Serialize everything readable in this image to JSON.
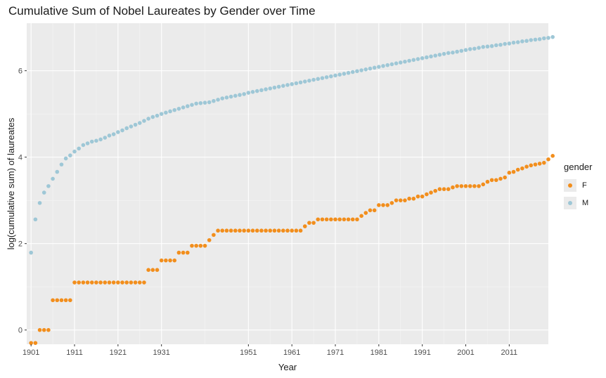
{
  "chart_data": {
    "type": "scatter",
    "title": "Cumulative Sum of Nobel Laureates by Gender over Time",
    "xlabel": "Year",
    "ylabel": "log(cumulative sum) of laureates",
    "xlim": [
      1900,
      2020
    ],
    "ylim": [
      -0.33,
      7.1
    ],
    "x_ticks": [
      1901,
      1911,
      1921,
      1931,
      1951,
      1961,
      1971,
      1981,
      1991,
      2001,
      2011
    ],
    "y_ticks": [
      0,
      2,
      4,
      6
    ],
    "grid": true,
    "legend_position": "right",
    "legend_title": "gender",
    "colors": {
      "F": "#f28e1c",
      "M": "#9ec7d6",
      "panel": "#ebebeb",
      "grid": "#ffffff"
    },
    "series": [
      {
        "name": "F",
        "color": "#f28e1c",
        "points": [
          [
            1901,
            -0.3
          ],
          [
            1902,
            -0.3
          ],
          [
            1903,
            0
          ],
          [
            1904,
            0
          ],
          [
            1905,
            0
          ],
          [
            1906,
            0.69
          ],
          [
            1907,
            0.69
          ],
          [
            1908,
            0.69
          ],
          [
            1909,
            0.69
          ],
          [
            1910,
            0.69
          ],
          [
            1911,
            1.1
          ],
          [
            1912,
            1.1
          ],
          [
            1913,
            1.1
          ],
          [
            1914,
            1.1
          ],
          [
            1915,
            1.1
          ],
          [
            1916,
            1.1
          ],
          [
            1917,
            1.1
          ],
          [
            1918,
            1.1
          ],
          [
            1919,
            1.1
          ],
          [
            1920,
            1.1
          ],
          [
            1921,
            1.1
          ],
          [
            1922,
            1.1
          ],
          [
            1923,
            1.1
          ],
          [
            1924,
            1.1
          ],
          [
            1925,
            1.1
          ],
          [
            1926,
            1.1
          ],
          [
            1927,
            1.1
          ],
          [
            1928,
            1.39
          ],
          [
            1929,
            1.39
          ],
          [
            1930,
            1.39
          ],
          [
            1931,
            1.61
          ],
          [
            1932,
            1.61
          ],
          [
            1933,
            1.61
          ],
          [
            1934,
            1.61
          ],
          [
            1935,
            1.79
          ],
          [
            1936,
            1.79
          ],
          [
            1937,
            1.79
          ],
          [
            1938,
            1.95
          ],
          [
            1939,
            1.95
          ],
          [
            1940,
            1.95
          ],
          [
            1941,
            1.95
          ],
          [
            1942,
            2.08
          ],
          [
            1943,
            2.2
          ],
          [
            1944,
            2.3
          ],
          [
            1945,
            2.3
          ],
          [
            1946,
            2.3
          ],
          [
            1947,
            2.3
          ],
          [
            1948,
            2.3
          ],
          [
            1949,
            2.3
          ],
          [
            1950,
            2.3
          ],
          [
            1951,
            2.3
          ],
          [
            1952,
            2.3
          ],
          [
            1953,
            2.3
          ],
          [
            1954,
            2.3
          ],
          [
            1955,
            2.3
          ],
          [
            1956,
            2.3
          ],
          [
            1957,
            2.3
          ],
          [
            1958,
            2.3
          ],
          [
            1959,
            2.3
          ],
          [
            1960,
            2.3
          ],
          [
            1961,
            2.3
          ],
          [
            1962,
            2.3
          ],
          [
            1963,
            2.3
          ],
          [
            1964,
            2.4
          ],
          [
            1965,
            2.48
          ],
          [
            1966,
            2.48
          ],
          [
            1967,
            2.56
          ],
          [
            1968,
            2.56
          ],
          [
            1969,
            2.56
          ],
          [
            1970,
            2.56
          ],
          [
            1971,
            2.56
          ],
          [
            1972,
            2.56
          ],
          [
            1973,
            2.56
          ],
          [
            1974,
            2.56
          ],
          [
            1975,
            2.56
          ],
          [
            1976,
            2.56
          ],
          [
            1977,
            2.64
          ],
          [
            1978,
            2.71
          ],
          [
            1979,
            2.77
          ],
          [
            1980,
            2.77
          ],
          [
            1981,
            2.89
          ],
          [
            1982,
            2.89
          ],
          [
            1983,
            2.89
          ],
          [
            1984,
            2.94
          ],
          [
            1985,
            3.0
          ],
          [
            1986,
            3.0
          ],
          [
            1987,
            3.0
          ],
          [
            1988,
            3.04
          ],
          [
            1989,
            3.04
          ],
          [
            1990,
            3.09
          ],
          [
            1991,
            3.09
          ],
          [
            1992,
            3.14
          ],
          [
            1993,
            3.18
          ],
          [
            1994,
            3.22
          ],
          [
            1995,
            3.26
          ],
          [
            1996,
            3.26
          ],
          [
            1997,
            3.26
          ],
          [
            1998,
            3.3
          ],
          [
            1999,
            3.33
          ],
          [
            2000,
            3.33
          ],
          [
            2001,
            3.33
          ],
          [
            2002,
            3.33
          ],
          [
            2003,
            3.33
          ],
          [
            2004,
            3.33
          ],
          [
            2005,
            3.37
          ],
          [
            2006,
            3.43
          ],
          [
            2007,
            3.47
          ],
          [
            2008,
            3.47
          ],
          [
            2009,
            3.5
          ],
          [
            2010,
            3.53
          ],
          [
            2011,
            3.64
          ],
          [
            2012,
            3.66
          ],
          [
            2013,
            3.71
          ],
          [
            2014,
            3.74
          ],
          [
            2015,
            3.78
          ],
          [
            2016,
            3.81
          ],
          [
            2017,
            3.83
          ],
          [
            2018,
            3.85
          ],
          [
            2019,
            3.87
          ],
          [
            2020,
            3.95
          ],
          [
            2021,
            4.03
          ]
        ]
      },
      {
        "name": "M",
        "color": "#9ec7d6",
        "points": [
          [
            1901,
            1.79
          ],
          [
            1902,
            2.56
          ],
          [
            1903,
            2.94
          ],
          [
            1904,
            3.18
          ],
          [
            1905,
            3.33
          ],
          [
            1906,
            3.5
          ],
          [
            1907,
            3.66
          ],
          [
            1908,
            3.83
          ],
          [
            1909,
            3.97
          ],
          [
            1910,
            4.04
          ],
          [
            1911,
            4.13
          ],
          [
            1912,
            4.2
          ],
          [
            1913,
            4.28
          ],
          [
            1914,
            4.32
          ],
          [
            1915,
            4.36
          ],
          [
            1916,
            4.38
          ],
          [
            1917,
            4.41
          ],
          [
            1918,
            4.45
          ],
          [
            1919,
            4.5
          ],
          [
            1920,
            4.53
          ],
          [
            1921,
            4.58
          ],
          [
            1922,
            4.62
          ],
          [
            1923,
            4.67
          ],
          [
            1924,
            4.71
          ],
          [
            1925,
            4.75
          ],
          [
            1926,
            4.79
          ],
          [
            1927,
            4.84
          ],
          [
            1928,
            4.89
          ],
          [
            1929,
            4.93
          ],
          [
            1930,
            4.96
          ],
          [
            1931,
            5.0
          ],
          [
            1932,
            5.03
          ],
          [
            1933,
            5.06
          ],
          [
            1934,
            5.09
          ],
          [
            1935,
            5.12
          ],
          [
            1936,
            5.15
          ],
          [
            1937,
            5.18
          ],
          [
            1938,
            5.21
          ],
          [
            1939,
            5.24
          ],
          [
            1940,
            5.25
          ],
          [
            1941,
            5.26
          ],
          [
            1942,
            5.27
          ],
          [
            1943,
            5.3
          ],
          [
            1944,
            5.33
          ],
          [
            1945,
            5.36
          ],
          [
            1946,
            5.38
          ],
          [
            1947,
            5.4
          ],
          [
            1948,
            5.42
          ],
          [
            1949,
            5.44
          ],
          [
            1950,
            5.46
          ],
          [
            1951,
            5.49
          ],
          [
            1952,
            5.51
          ],
          [
            1953,
            5.53
          ],
          [
            1954,
            5.55
          ],
          [
            1955,
            5.57
          ],
          [
            1956,
            5.59
          ],
          [
            1957,
            5.61
          ],
          [
            1958,
            5.63
          ],
          [
            1959,
            5.65
          ],
          [
            1960,
            5.67
          ],
          [
            1961,
            5.69
          ],
          [
            1962,
            5.71
          ],
          [
            1963,
            5.73
          ],
          [
            1964,
            5.75
          ],
          [
            1965,
            5.77
          ],
          [
            1966,
            5.79
          ],
          [
            1967,
            5.81
          ],
          [
            1968,
            5.83
          ],
          [
            1969,
            5.85
          ],
          [
            1970,
            5.87
          ],
          [
            1971,
            5.89
          ],
          [
            1972,
            5.91
          ],
          [
            1973,
            5.93
          ],
          [
            1974,
            5.95
          ],
          [
            1975,
            5.97
          ],
          [
            1976,
            5.99
          ],
          [
            1977,
            6.01
          ],
          [
            1978,
            6.03
          ],
          [
            1979,
            6.05
          ],
          [
            1980,
            6.07
          ],
          [
            1981,
            6.09
          ],
          [
            1982,
            6.11
          ],
          [
            1983,
            6.13
          ],
          [
            1984,
            6.15
          ],
          [
            1985,
            6.17
          ],
          [
            1986,
            6.19
          ],
          [
            1987,
            6.21
          ],
          [
            1988,
            6.23
          ],
          [
            1989,
            6.25
          ],
          [
            1990,
            6.27
          ],
          [
            1991,
            6.29
          ],
          [
            1992,
            6.31
          ],
          [
            1993,
            6.33
          ],
          [
            1994,
            6.35
          ],
          [
            1995,
            6.37
          ],
          [
            1996,
            6.39
          ],
          [
            1997,
            6.41
          ],
          [
            1998,
            6.42
          ],
          [
            1999,
            6.44
          ],
          [
            2000,
            6.46
          ],
          [
            2001,
            6.48
          ],
          [
            2002,
            6.5
          ],
          [
            2003,
            6.51
          ],
          [
            2004,
            6.53
          ],
          [
            2005,
            6.55
          ],
          [
            2006,
            6.56
          ],
          [
            2007,
            6.57
          ],
          [
            2008,
            6.59
          ],
          [
            2009,
            6.6
          ],
          [
            2010,
            6.62
          ],
          [
            2011,
            6.63
          ],
          [
            2012,
            6.65
          ],
          [
            2013,
            6.66
          ],
          [
            2014,
            6.68
          ],
          [
            2015,
            6.69
          ],
          [
            2016,
            6.71
          ],
          [
            2017,
            6.72
          ],
          [
            2018,
            6.73
          ],
          [
            2019,
            6.75
          ],
          [
            2020,
            6.76
          ],
          [
            2021,
            6.78
          ]
        ]
      }
    ]
  }
}
